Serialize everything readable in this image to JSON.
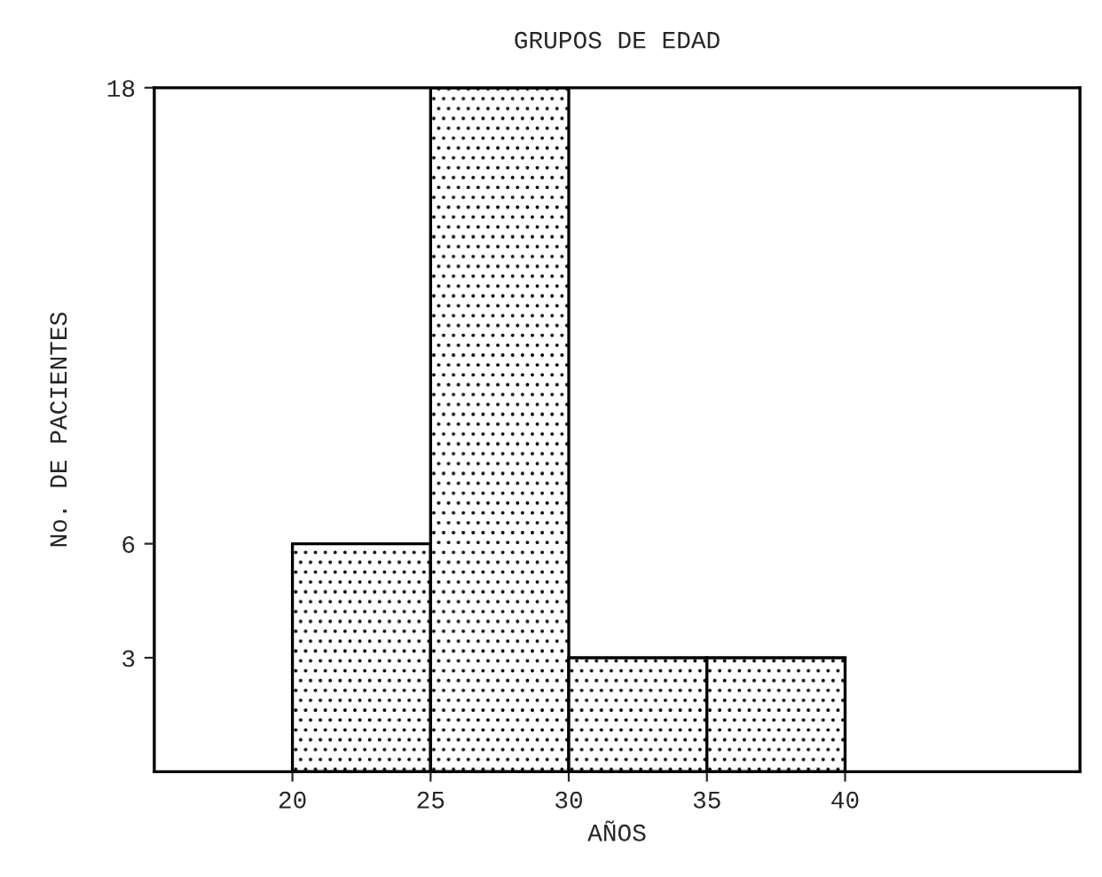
{
  "chart_data": {
    "type": "histogram",
    "title": "GRUPOS DE EDAD",
    "xlabel": "AÑOS",
    "ylabel": "No. DE PACIENTES",
    "bins": [
      20,
      25,
      30,
      35,
      40
    ],
    "values": [
      6,
      18,
      3,
      3
    ],
    "color": "#000000",
    "xlim": [
      15,
      48.5
    ],
    "ylim": [
      0,
      18
    ],
    "xticks": [
      20,
      25,
      30,
      35,
      40
    ],
    "yticks": [
      3,
      6,
      18
    ],
    "grid": false,
    "legend": false
  }
}
